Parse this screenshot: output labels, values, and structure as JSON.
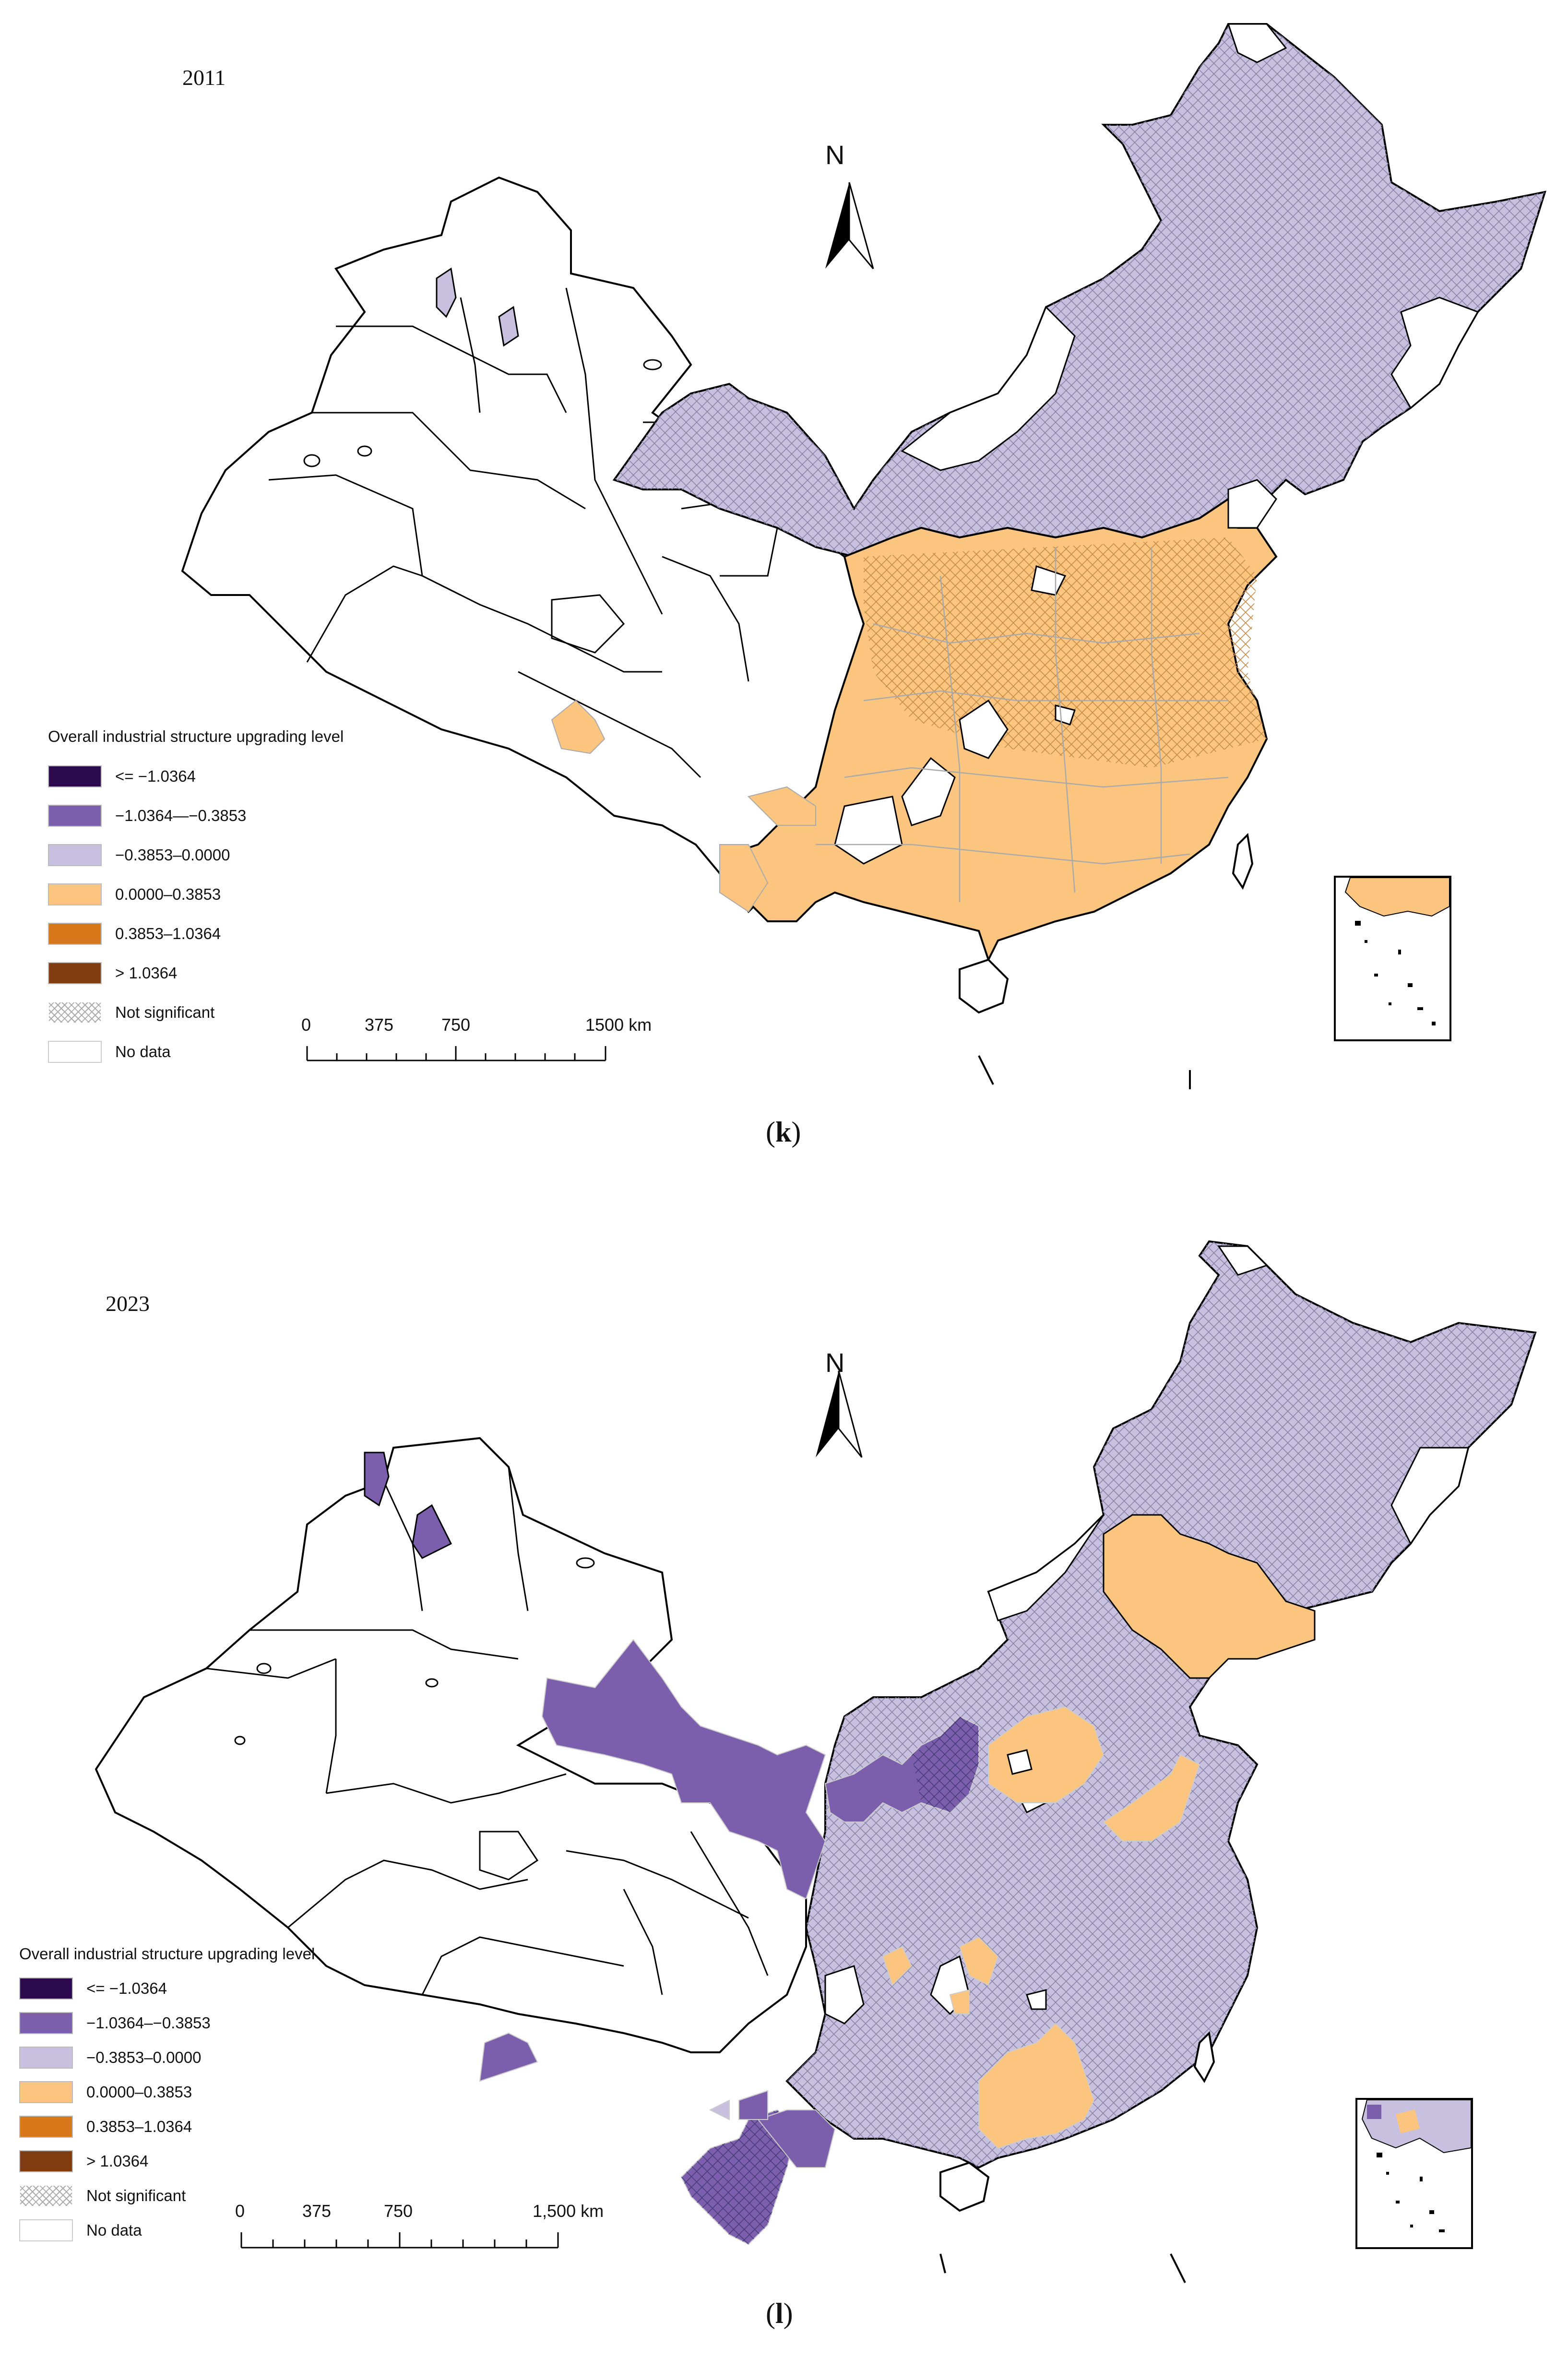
{
  "colors": {
    "class_1": "#2d0a4e",
    "class_2": "#7b5fac",
    "class_3": "#c7c0de",
    "class_4": "#fcc57f",
    "class_5": "#d7771a",
    "class_6": "#7e3c10",
    "boundary": "#000000",
    "inner_boundary": "#a9a9a9"
  },
  "legend": {
    "title": "Overall industrial structure upgrading level",
    "items": [
      {
        "label": "<= −1.0364",
        "color": "#2d0a4e"
      },
      {
        "label": "−1.0364—−0.3853",
        "color": "#7b5fac"
      },
      {
        "label": "−0.3853–0.0000",
        "color": "#c7c0de"
      },
      {
        "label": "0.0000–0.3853",
        "color": "#fcc57f"
      },
      {
        "label": "0.3853–1.0364",
        "color": "#d7771a"
      },
      {
        "label": "> 1.0364",
        "color": "#7e3c10"
      },
      {
        "label": "Not significant",
        "color": "hatch"
      },
      {
        "label": "No data",
        "color": "#ffffff"
      }
    ]
  },
  "panels": [
    {
      "year": "2011",
      "caption_letter": "k",
      "north": "N",
      "scale": {
        "labels": [
          "0",
          "375",
          "750",
          "1500 km"
        ]
      },
      "legend_items": [
        {
          "label": "<= −1.0364"
        },
        {
          "label": "−1.0364—−0.3853"
        },
        {
          "label": "−0.3853–0.0000"
        },
        {
          "label": "0.0000–0.3853"
        },
        {
          "label": "0.3853–1.0364"
        },
        {
          "label": "> 1.0364"
        },
        {
          "label": "Not significant"
        },
        {
          "label": "No data"
        }
      ]
    },
    {
      "year": "2023",
      "caption_letter": "l",
      "north": "N",
      "scale": {
        "labels": [
          "0",
          "375",
          "750",
          "1,500 km"
        ]
      },
      "legend_items": [
        {
          "label": "<= −1.0364"
        },
        {
          "label": "−1.0364–−0.3853"
        },
        {
          "label": "−0.3853–0.0000"
        },
        {
          "label": "0.0000–0.3853"
        },
        {
          "label": "0.3853–1.0364"
        },
        {
          "label": "> 1.0364"
        },
        {
          "label": "Not significant"
        },
        {
          "label": "No data"
        }
      ]
    }
  ]
}
